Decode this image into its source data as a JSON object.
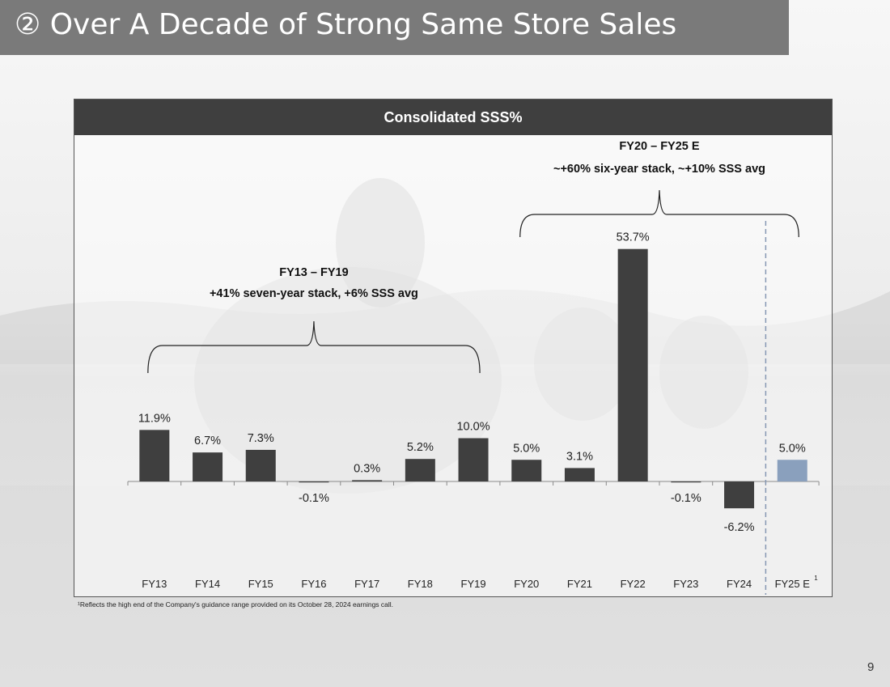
{
  "slide": {
    "title": "② Over A Decade of Strong Same Store Sales",
    "footnote": "¹Reflects the high end of the Company's guidance range provided on its October 28, 2024 earnings call.",
    "page_number": "9"
  },
  "colors": {
    "bar": "#3f3f3f",
    "bar_estimate": "#8aa0bd",
    "header": "#3f3f3f",
    "divider": "#8597b3"
  },
  "chart_data": {
    "type": "bar",
    "title": "Consolidated SSS%",
    "categories": [
      "FY13",
      "FY14",
      "FY15",
      "FY16",
      "FY17",
      "FY18",
      "FY19",
      "FY20",
      "FY21",
      "FY22",
      "FY23",
      "FY24",
      "FY25 E"
    ],
    "category_superscripts": [
      "",
      "",
      "",
      "",
      "",
      "",
      "",
      "",
      "",
      "",
      "",
      "",
      "1"
    ],
    "values": [
      11.9,
      6.7,
      7.3,
      -0.1,
      0.3,
      5.2,
      10.0,
      5.0,
      3.1,
      53.7,
      -0.1,
      -6.2,
      5.0
    ],
    "labels": [
      "11.9%",
      "6.7%",
      "7.3%",
      "-0.1%",
      "0.3%",
      "5.2%",
      "10.0%",
      "5.0%",
      "3.1%",
      "53.7%",
      "-0.1%",
      "-6.2%",
      "5.0%"
    ],
    "estimate_flags": [
      false,
      false,
      false,
      false,
      false,
      false,
      false,
      false,
      false,
      false,
      false,
      false,
      true
    ],
    "xlabel": "",
    "ylabel": "",
    "ylim": [
      -20,
      60
    ],
    "grid": false,
    "annotations": [
      {
        "first_index": 0,
        "last_index": 6,
        "line1": "FY13 – FY19",
        "line2": "+41% seven-year stack, +6% SSS avg"
      },
      {
        "first_index": 7,
        "last_index": 12,
        "line1": "FY20 – FY25 E",
        "line2": "~+60% six-year stack, ~+10% SSS avg"
      }
    ],
    "divider_after_index": 11
  }
}
